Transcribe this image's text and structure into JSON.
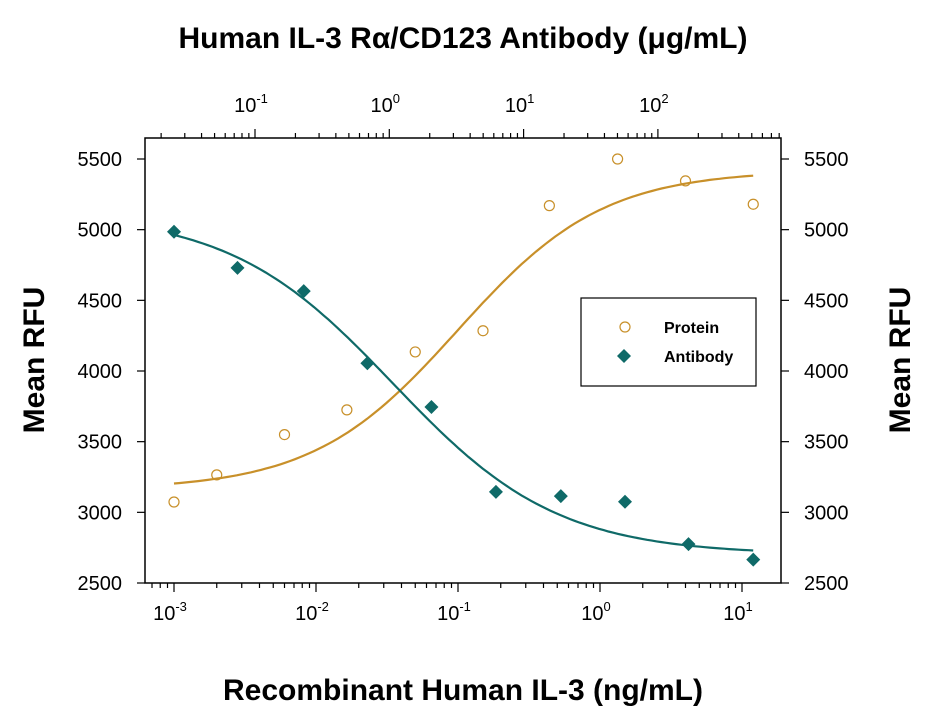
{
  "chart_data": {
    "type": "scatter",
    "title": "Human IL-3 Rα/CD123 Antibody (μg/mL)",
    "xlabel": "Recombinant Human IL-3 (ng/mL)",
    "ylabel": "Mean RFU",
    "ylabel_right": "Mean RFU",
    "x_scale": "log",
    "xlim": [
      0.0006,
      18.6
    ],
    "ylim": [
      2500,
      5600
    ],
    "x_ticks": [
      {
        "value": 0.001,
        "base": "10",
        "exp": "-3"
      },
      {
        "value": 0.01,
        "base": "10",
        "exp": "-2"
      },
      {
        "value": 0.1,
        "base": "10",
        "exp": "-1"
      },
      {
        "value": 1,
        "base": "10",
        "exp": "0"
      },
      {
        "value": 10,
        "base": "10",
        "exp": "1"
      }
    ],
    "top_axis": {
      "label": "Human IL-3 Rα/CD123 Antibody (μg/mL)",
      "scale": "log",
      "ticks": [
        {
          "value": 0.1,
          "base": "10",
          "exp": "-1"
        },
        {
          "value": 1,
          "base": "10",
          "exp": "0"
        },
        {
          "value": 10,
          "base": "10",
          "exp": "1"
        },
        {
          "value": 100,
          "base": "10",
          "exp": "2"
        }
      ]
    },
    "y_ticks": [
      2500,
      3000,
      3500,
      4000,
      4500,
      5000,
      5500
    ],
    "grid": false,
    "legend_position": "center-right",
    "series": [
      {
        "name": "Protein",
        "marker": "open-circle",
        "color": "#c8902a",
        "x": [
          0.001,
          0.002,
          0.006,
          0.0165,
          0.05,
          0.15,
          0.44,
          1.33,
          4.0,
          12.0
        ],
        "y": [
          3073,
          3265,
          3550,
          3725,
          4135,
          4285,
          5170,
          5500,
          5345,
          5180
        ],
        "fit": {
          "type": "4PL",
          "bottom": 3160,
          "top": 5420,
          "ec50": 0.1,
          "hill": 0.85
        }
      },
      {
        "name": "Antibody",
        "marker": "filled-diamond",
        "color": "#0f6a68",
        "x": [
          0.001,
          0.0028,
          0.0082,
          0.023,
          0.065,
          0.185,
          0.53,
          1.5,
          4.2,
          12.0
        ],
        "y": [
          4985,
          4730,
          4565,
          4055,
          3745,
          3145,
          3115,
          3075,
          2775,
          2665
        ],
        "fit": {
          "type": "4PL",
          "bottom": 2700,
          "top": 5120,
          "ec50": 0.035,
          "hill": -0.75
        }
      }
    ]
  }
}
